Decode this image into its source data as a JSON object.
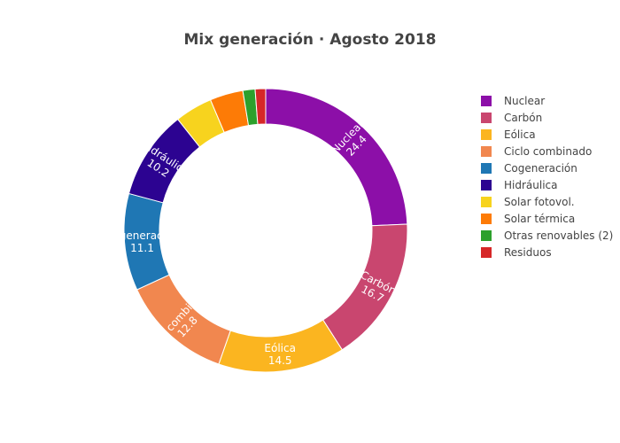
{
  "chart_data": {
    "type": "pie",
    "donut": true,
    "title": "Mix generación · Agosto 2018",
    "legend_position": "right",
    "slices": [
      {
        "label": "Nuclear",
        "value": 24.4,
        "color": "#8c0fa8",
        "show_label": true
      },
      {
        "label": "Carbón",
        "value": 16.7,
        "color": "#c9466f",
        "show_label": true
      },
      {
        "label": "Eólica",
        "value": 14.5,
        "color": "#fbb520",
        "show_label": true
      },
      {
        "label": "Ciclo combinado",
        "value": 12.8,
        "color": "#f1874f",
        "show_label": true
      },
      {
        "label": "Cogeneración",
        "value": 11.1,
        "color": "#1f77b4",
        "show_label": true
      },
      {
        "label": "Hidráulica",
        "value": 10.2,
        "color": "#2c0391",
        "show_label": true
      },
      {
        "label": "Solar fotovol.",
        "value": 4.3,
        "color": "#f7d31e",
        "show_label": false
      },
      {
        "label": "Solar térmica",
        "value": 3.8,
        "color": "#fd7b06",
        "show_label": false
      },
      {
        "label": "Otras renovables (2)",
        "value": 1.4,
        "color": "#2ca02c",
        "show_label": false
      },
      {
        "label": "Residuos",
        "value": 1.2,
        "color": "#d62728",
        "show_label": false
      }
    ]
  }
}
